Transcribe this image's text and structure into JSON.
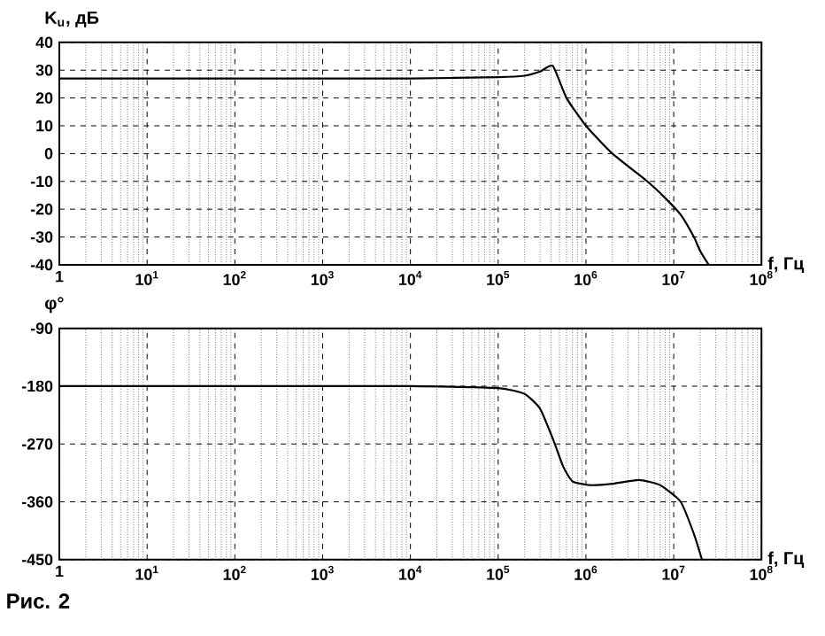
{
  "chart_data": [
    {
      "type": "line",
      "ylabel": "K$_{u}$, дБ",
      "xlabel": "f, Гц",
      "log": "x",
      "grid": true,
      "marker": "none",
      "line_style": "solid",
      "xlim": [
        1,
        100000000
      ],
      "ylim": [
        -40,
        40
      ],
      "xticks": [
        {
          "value": 1,
          "label": "1"
        },
        {
          "value": 10,
          "label": "10$^{1}$"
        },
        {
          "value": 100,
          "label": "10$^{2}$"
        },
        {
          "value": 1000,
          "label": "10$^{3}$"
        },
        {
          "value": 10000,
          "label": "10$^{4}$"
        },
        {
          "value": 100000,
          "label": "10$^{5}$"
        },
        {
          "value": 1000000,
          "label": "10$^{6}$"
        },
        {
          "value": 10000000,
          "label": "10$^{7}$"
        },
        {
          "value": 100000000,
          "label": "10$^{8}$"
        }
      ],
      "yticks": [
        -40,
        -30,
        -20,
        -10,
        0,
        10,
        20,
        30,
        40
      ],
      "series": [
        {
          "color": "#000000",
          "x": [
            1,
            10,
            100,
            1000,
            10000,
            100000,
            200000,
            300000,
            420000,
            600000,
            1000000,
            2000000,
            5000000,
            8000000,
            12000000,
            17000000,
            20000000,
            25000000
          ],
          "values": [
            27,
            27,
            27,
            27,
            27,
            27.5,
            28,
            29.5,
            31.5,
            20,
            10,
            0,
            -10,
            -16,
            -22,
            -30,
            -35,
            -40
          ]
        }
      ]
    },
    {
      "type": "line",
      "ylabel": "φ°",
      "xlabel": "f, Гц",
      "log": "x",
      "grid": true,
      "marker": "none",
      "line_style": "solid",
      "xlim": [
        1,
        100000000
      ],
      "ylim": [
        -450,
        -90
      ],
      "xticks": [
        {
          "value": 1,
          "label": "1"
        },
        {
          "value": 10,
          "label": "10$^{1}$"
        },
        {
          "value": 100,
          "label": "10$^{2}$"
        },
        {
          "value": 1000,
          "label": "10$^{3}$"
        },
        {
          "value": 10000,
          "label": "10$^{4}$"
        },
        {
          "value": 100000,
          "label": "10$^{5}$"
        },
        {
          "value": 1000000,
          "label": "10$^{6}$"
        },
        {
          "value": 10000000,
          "label": "10$^{7}$"
        },
        {
          "value": 100000000,
          "label": "10$^{8}$"
        }
      ],
      "yticks": [
        -450,
        -360,
        -270,
        -180,
        -90
      ],
      "annotations": [
        "Рис. 2"
      ],
      "series": [
        {
          "color": "#000000",
          "x": [
            1,
            10,
            100,
            1000,
            10000,
            100000,
            200000,
            300000,
            420000,
            550000,
            700000,
            1100000,
            2000000,
            4000000,
            7000000,
            12000000,
            17000000,
            21000000
          ],
          "values": [
            -180,
            -180,
            -180,
            -180,
            -180,
            -183,
            -192,
            -215,
            -262,
            -305,
            -328,
            -334,
            -332,
            -326,
            -334,
            -360,
            -410,
            -450
          ]
        }
      ]
    }
  ]
}
